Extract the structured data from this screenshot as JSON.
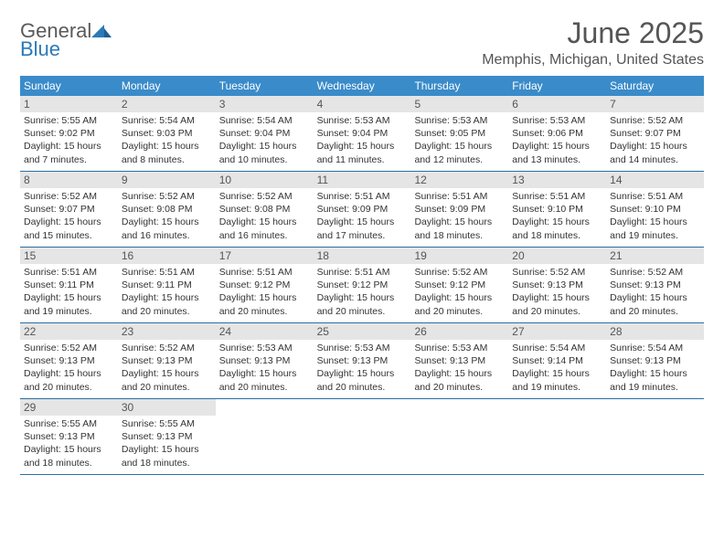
{
  "logo": {
    "word1": "General",
    "word2": "Blue"
  },
  "title": "June 2025",
  "location": "Memphis, Michigan, United States",
  "colors": {
    "header_bg": "#3a8bc9",
    "header_text": "#ffffff",
    "date_bar_bg": "#e5e5e5",
    "week_border": "#2a6fa3",
    "text": "#333333",
    "title_text": "#555555"
  },
  "dayNames": [
    "Sunday",
    "Monday",
    "Tuesday",
    "Wednesday",
    "Thursday",
    "Friday",
    "Saturday"
  ],
  "weeks": [
    [
      {
        "date": "1",
        "sunrise": "Sunrise: 5:55 AM",
        "sunset": "Sunset: 9:02 PM",
        "daylight": "Daylight: 15 hours and 7 minutes."
      },
      {
        "date": "2",
        "sunrise": "Sunrise: 5:54 AM",
        "sunset": "Sunset: 9:03 PM",
        "daylight": "Daylight: 15 hours and 8 minutes."
      },
      {
        "date": "3",
        "sunrise": "Sunrise: 5:54 AM",
        "sunset": "Sunset: 9:04 PM",
        "daylight": "Daylight: 15 hours and 10 minutes."
      },
      {
        "date": "4",
        "sunrise": "Sunrise: 5:53 AM",
        "sunset": "Sunset: 9:04 PM",
        "daylight": "Daylight: 15 hours and 11 minutes."
      },
      {
        "date": "5",
        "sunrise": "Sunrise: 5:53 AM",
        "sunset": "Sunset: 9:05 PM",
        "daylight": "Daylight: 15 hours and 12 minutes."
      },
      {
        "date": "6",
        "sunrise": "Sunrise: 5:53 AM",
        "sunset": "Sunset: 9:06 PM",
        "daylight": "Daylight: 15 hours and 13 minutes."
      },
      {
        "date": "7",
        "sunrise": "Sunrise: 5:52 AM",
        "sunset": "Sunset: 9:07 PM",
        "daylight": "Daylight: 15 hours and 14 minutes."
      }
    ],
    [
      {
        "date": "8",
        "sunrise": "Sunrise: 5:52 AM",
        "sunset": "Sunset: 9:07 PM",
        "daylight": "Daylight: 15 hours and 15 minutes."
      },
      {
        "date": "9",
        "sunrise": "Sunrise: 5:52 AM",
        "sunset": "Sunset: 9:08 PM",
        "daylight": "Daylight: 15 hours and 16 minutes."
      },
      {
        "date": "10",
        "sunrise": "Sunrise: 5:52 AM",
        "sunset": "Sunset: 9:08 PM",
        "daylight": "Daylight: 15 hours and 16 minutes."
      },
      {
        "date": "11",
        "sunrise": "Sunrise: 5:51 AM",
        "sunset": "Sunset: 9:09 PM",
        "daylight": "Daylight: 15 hours and 17 minutes."
      },
      {
        "date": "12",
        "sunrise": "Sunrise: 5:51 AM",
        "sunset": "Sunset: 9:09 PM",
        "daylight": "Daylight: 15 hours and 18 minutes."
      },
      {
        "date": "13",
        "sunrise": "Sunrise: 5:51 AM",
        "sunset": "Sunset: 9:10 PM",
        "daylight": "Daylight: 15 hours and 18 minutes."
      },
      {
        "date": "14",
        "sunrise": "Sunrise: 5:51 AM",
        "sunset": "Sunset: 9:10 PM",
        "daylight": "Daylight: 15 hours and 19 minutes."
      }
    ],
    [
      {
        "date": "15",
        "sunrise": "Sunrise: 5:51 AM",
        "sunset": "Sunset: 9:11 PM",
        "daylight": "Daylight: 15 hours and 19 minutes."
      },
      {
        "date": "16",
        "sunrise": "Sunrise: 5:51 AM",
        "sunset": "Sunset: 9:11 PM",
        "daylight": "Daylight: 15 hours and 20 minutes."
      },
      {
        "date": "17",
        "sunrise": "Sunrise: 5:51 AM",
        "sunset": "Sunset: 9:12 PM",
        "daylight": "Daylight: 15 hours and 20 minutes."
      },
      {
        "date": "18",
        "sunrise": "Sunrise: 5:51 AM",
        "sunset": "Sunset: 9:12 PM",
        "daylight": "Daylight: 15 hours and 20 minutes."
      },
      {
        "date": "19",
        "sunrise": "Sunrise: 5:52 AM",
        "sunset": "Sunset: 9:12 PM",
        "daylight": "Daylight: 15 hours and 20 minutes."
      },
      {
        "date": "20",
        "sunrise": "Sunrise: 5:52 AM",
        "sunset": "Sunset: 9:13 PM",
        "daylight": "Daylight: 15 hours and 20 minutes."
      },
      {
        "date": "21",
        "sunrise": "Sunrise: 5:52 AM",
        "sunset": "Sunset: 9:13 PM",
        "daylight": "Daylight: 15 hours and 20 minutes."
      }
    ],
    [
      {
        "date": "22",
        "sunrise": "Sunrise: 5:52 AM",
        "sunset": "Sunset: 9:13 PM",
        "daylight": "Daylight: 15 hours and 20 minutes."
      },
      {
        "date": "23",
        "sunrise": "Sunrise: 5:52 AM",
        "sunset": "Sunset: 9:13 PM",
        "daylight": "Daylight: 15 hours and 20 minutes."
      },
      {
        "date": "24",
        "sunrise": "Sunrise: 5:53 AM",
        "sunset": "Sunset: 9:13 PM",
        "daylight": "Daylight: 15 hours and 20 minutes."
      },
      {
        "date": "25",
        "sunrise": "Sunrise: 5:53 AM",
        "sunset": "Sunset: 9:13 PM",
        "daylight": "Daylight: 15 hours and 20 minutes."
      },
      {
        "date": "26",
        "sunrise": "Sunrise: 5:53 AM",
        "sunset": "Sunset: 9:13 PM",
        "daylight": "Daylight: 15 hours and 20 minutes."
      },
      {
        "date": "27",
        "sunrise": "Sunrise: 5:54 AM",
        "sunset": "Sunset: 9:14 PM",
        "daylight": "Daylight: 15 hours and 19 minutes."
      },
      {
        "date": "28",
        "sunrise": "Sunrise: 5:54 AM",
        "sunset": "Sunset: 9:13 PM",
        "daylight": "Daylight: 15 hours and 19 minutes."
      }
    ],
    [
      {
        "date": "29",
        "sunrise": "Sunrise: 5:55 AM",
        "sunset": "Sunset: 9:13 PM",
        "daylight": "Daylight: 15 hours and 18 minutes."
      },
      {
        "date": "30",
        "sunrise": "Sunrise: 5:55 AM",
        "sunset": "Sunset: 9:13 PM",
        "daylight": "Daylight: 15 hours and 18 minutes."
      },
      {
        "empty": true
      },
      {
        "empty": true
      },
      {
        "empty": true
      },
      {
        "empty": true
      },
      {
        "empty": true
      }
    ]
  ]
}
